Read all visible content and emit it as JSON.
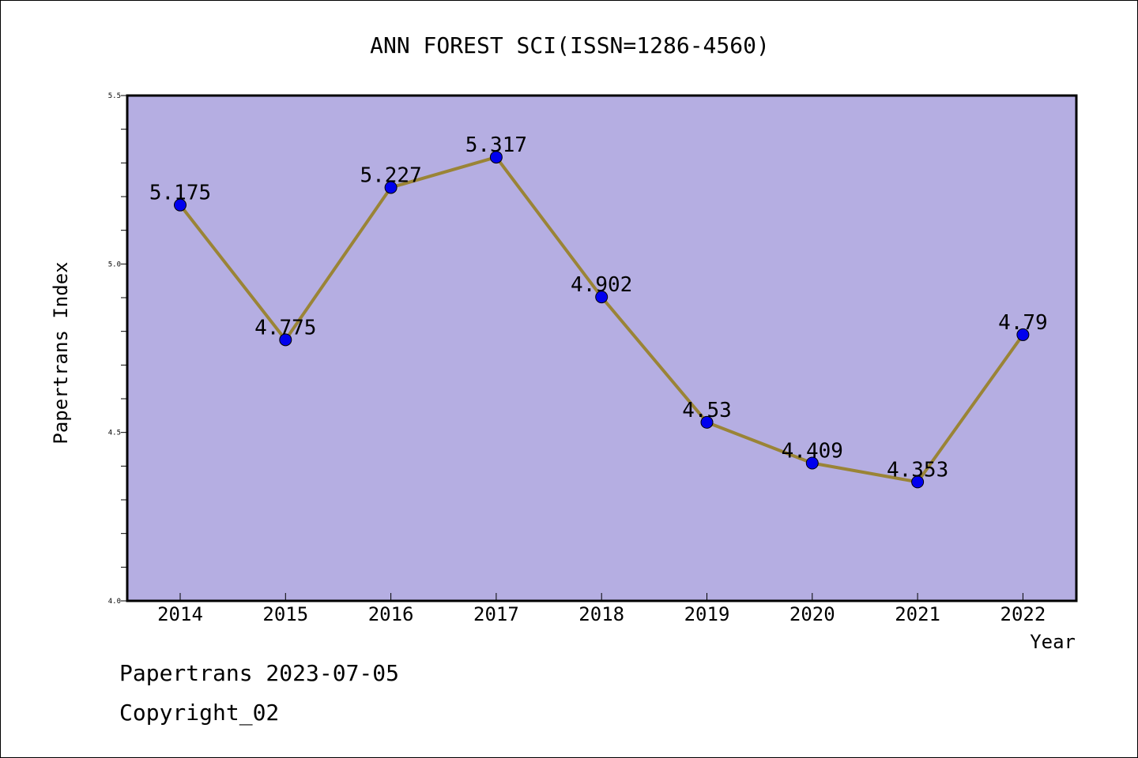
{
  "chart_data": {
    "type": "line",
    "title": "ANN FOREST SCI(ISSN=1286-4560)",
    "xlabel": "Year",
    "ylabel": "Papertrans Index",
    "categories": [
      "2014",
      "2015",
      "2016",
      "2017",
      "2018",
      "2019",
      "2020",
      "2021",
      "2022"
    ],
    "series": [
      {
        "values": [
          5.175,
          4.775,
          5.227,
          5.317,
          4.902,
          4.53,
          4.409,
          4.353,
          4.79
        ],
        "data_labels": [
          "5.175",
          "4.775",
          "5.227",
          "5.317",
          "4.902",
          "4.53",
          "4.409",
          "4.353",
          "4.79"
        ]
      }
    ],
    "ylim": [
      4.0,
      5.5
    ],
    "yticks": [
      "4.0",
      "4.5",
      "5.0",
      "5.5"
    ],
    "grid": false,
    "colors": {
      "plot_background": "#b5aee2",
      "line": "#9a8436",
      "marker": "#0000ee"
    }
  },
  "footer": {
    "date_text": "Papertrans 2023-07-05",
    "copyright_text": "Copyright_02"
  }
}
